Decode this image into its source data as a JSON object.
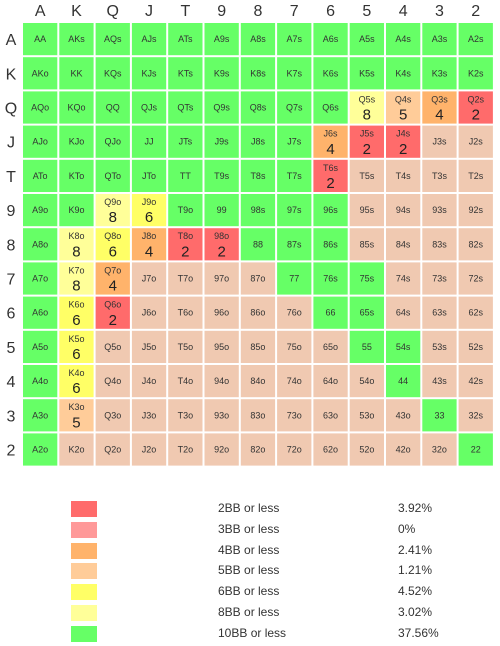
{
  "chart_data": {
    "type": "heatmap",
    "title": "",
    "columns": [
      "A",
      "K",
      "Q",
      "J",
      "T",
      "9",
      "8",
      "7",
      "6",
      "5",
      "4",
      "3",
      "2"
    ],
    "rows": [
      "A",
      "K",
      "Q",
      "J",
      "T",
      "9",
      "8",
      "7",
      "6",
      "5",
      "4",
      "3",
      "2"
    ],
    "colors": {
      "green": "#66ff66",
      "peach": "#f0c9b1",
      "red2": "#ff6b6b",
      "red3": "#ff9999",
      "orange4": "#ffb36b",
      "apricot5": "#ffcc99",
      "yellow6": "#ffff66",
      "yellow8": "#ffff99"
    },
    "cells": [
      [
        {
          "l": "AA",
          "c": "green"
        },
        {
          "l": "AKs",
          "c": "green"
        },
        {
          "l": "AQs",
          "c": "green"
        },
        {
          "l": "AJs",
          "c": "green"
        },
        {
          "l": "ATs",
          "c": "green"
        },
        {
          "l": "A9s",
          "c": "green"
        },
        {
          "l": "A8s",
          "c": "green"
        },
        {
          "l": "A7s",
          "c": "green"
        },
        {
          "l": "A6s",
          "c": "green"
        },
        {
          "l": "A5s",
          "c": "green"
        },
        {
          "l": "A4s",
          "c": "green"
        },
        {
          "l": "A3s",
          "c": "green"
        },
        {
          "l": "A2s",
          "c": "green"
        }
      ],
      [
        {
          "l": "AKo",
          "c": "green"
        },
        {
          "l": "KK",
          "c": "green"
        },
        {
          "l": "KQs",
          "c": "green"
        },
        {
          "l": "KJs",
          "c": "green"
        },
        {
          "l": "KTs",
          "c": "green"
        },
        {
          "l": "K9s",
          "c": "green"
        },
        {
          "l": "K8s",
          "c": "green"
        },
        {
          "l": "K7s",
          "c": "green"
        },
        {
          "l": "K6s",
          "c": "green"
        },
        {
          "l": "K5s",
          "c": "green"
        },
        {
          "l": "K4s",
          "c": "green"
        },
        {
          "l": "K3s",
          "c": "green"
        },
        {
          "l": "K2s",
          "c": "green"
        }
      ],
      [
        {
          "l": "AQo",
          "c": "green"
        },
        {
          "l": "KQo",
          "c": "green"
        },
        {
          "l": "QQ",
          "c": "green"
        },
        {
          "l": "QJs",
          "c": "green"
        },
        {
          "l": "QTs",
          "c": "green"
        },
        {
          "l": "Q9s",
          "c": "green"
        },
        {
          "l": "Q8s",
          "c": "green"
        },
        {
          "l": "Q7s",
          "c": "green"
        },
        {
          "l": "Q6s",
          "c": "green"
        },
        {
          "l": "Q5s",
          "c": "yellow8",
          "n": "8"
        },
        {
          "l": "Q4s",
          "c": "apricot5",
          "n": "5"
        },
        {
          "l": "Q3s",
          "c": "orange4",
          "n": "4"
        },
        {
          "l": "Q2s",
          "c": "red2",
          "n": "2"
        }
      ],
      [
        {
          "l": "AJo",
          "c": "green"
        },
        {
          "l": "KJo",
          "c": "green"
        },
        {
          "l": "QJo",
          "c": "green"
        },
        {
          "l": "JJ",
          "c": "green"
        },
        {
          "l": "JTs",
          "c": "green"
        },
        {
          "l": "J9s",
          "c": "green"
        },
        {
          "l": "J8s",
          "c": "green"
        },
        {
          "l": "J7s",
          "c": "green"
        },
        {
          "l": "J6s",
          "c": "orange4",
          "n": "4"
        },
        {
          "l": "J5s",
          "c": "red2",
          "n": "2"
        },
        {
          "l": "J4s",
          "c": "red2",
          "n": "2"
        },
        {
          "l": "J3s",
          "c": "peach"
        },
        {
          "l": "J2s",
          "c": "peach"
        }
      ],
      [
        {
          "l": "ATo",
          "c": "green"
        },
        {
          "l": "KTo",
          "c": "green"
        },
        {
          "l": "QTo",
          "c": "green"
        },
        {
          "l": "JTo",
          "c": "green"
        },
        {
          "l": "TT",
          "c": "green"
        },
        {
          "l": "T9s",
          "c": "green"
        },
        {
          "l": "T8s",
          "c": "green"
        },
        {
          "l": "T7s",
          "c": "green"
        },
        {
          "l": "T6s",
          "c": "red2",
          "n": "2"
        },
        {
          "l": "T5s",
          "c": "peach"
        },
        {
          "l": "T4s",
          "c": "peach"
        },
        {
          "l": "T3s",
          "c": "peach"
        },
        {
          "l": "T2s",
          "c": "peach"
        }
      ],
      [
        {
          "l": "A9o",
          "c": "green"
        },
        {
          "l": "K9o",
          "c": "green"
        },
        {
          "l": "Q9o",
          "c": "yellow8",
          "n": "8"
        },
        {
          "l": "J9o",
          "c": "yellow6",
          "n": "6"
        },
        {
          "l": "T9o",
          "c": "green"
        },
        {
          "l": "99",
          "c": "green"
        },
        {
          "l": "98s",
          "c": "green"
        },
        {
          "l": "97s",
          "c": "green"
        },
        {
          "l": "96s",
          "c": "green"
        },
        {
          "l": "95s",
          "c": "peach"
        },
        {
          "l": "94s",
          "c": "peach"
        },
        {
          "l": "93s",
          "c": "peach"
        },
        {
          "l": "92s",
          "c": "peach"
        }
      ],
      [
        {
          "l": "A8o",
          "c": "green"
        },
        {
          "l": "K8o",
          "c": "yellow8",
          "n": "8"
        },
        {
          "l": "Q8o",
          "c": "yellow6",
          "n": "6"
        },
        {
          "l": "J8o",
          "c": "orange4",
          "n": "4"
        },
        {
          "l": "T8o",
          "c": "red2",
          "n": "2"
        },
        {
          "l": "98o",
          "c": "red2",
          "n": "2"
        },
        {
          "l": "88",
          "c": "green"
        },
        {
          "l": "87s",
          "c": "green"
        },
        {
          "l": "86s",
          "c": "green"
        },
        {
          "l": "85s",
          "c": "peach"
        },
        {
          "l": "84s",
          "c": "peach"
        },
        {
          "l": "83s",
          "c": "peach"
        },
        {
          "l": "82s",
          "c": "peach"
        }
      ],
      [
        {
          "l": "A7o",
          "c": "green"
        },
        {
          "l": "K7o",
          "c": "yellow8",
          "n": "8"
        },
        {
          "l": "Q7o",
          "c": "orange4",
          "n": "4"
        },
        {
          "l": "J7o",
          "c": "peach"
        },
        {
          "l": "T7o",
          "c": "peach"
        },
        {
          "l": "97o",
          "c": "peach"
        },
        {
          "l": "87o",
          "c": "peach"
        },
        {
          "l": "77",
          "c": "green"
        },
        {
          "l": "76s",
          "c": "green"
        },
        {
          "l": "75s",
          "c": "green"
        },
        {
          "l": "74s",
          "c": "peach"
        },
        {
          "l": "73s",
          "c": "peach"
        },
        {
          "l": "72s",
          "c": "peach"
        }
      ],
      [
        {
          "l": "A6o",
          "c": "green"
        },
        {
          "l": "K6o",
          "c": "yellow6",
          "n": "6"
        },
        {
          "l": "Q6o",
          "c": "red2",
          "n": "2"
        },
        {
          "l": "J6o",
          "c": "peach"
        },
        {
          "l": "T6o",
          "c": "peach"
        },
        {
          "l": "96o",
          "c": "peach"
        },
        {
          "l": "86o",
          "c": "peach"
        },
        {
          "l": "76o",
          "c": "peach"
        },
        {
          "l": "66",
          "c": "green"
        },
        {
          "l": "65s",
          "c": "green"
        },
        {
          "l": "64s",
          "c": "peach"
        },
        {
          "l": "63s",
          "c": "peach"
        },
        {
          "l": "62s",
          "c": "peach"
        }
      ],
      [
        {
          "l": "A5o",
          "c": "green"
        },
        {
          "l": "K5o",
          "c": "yellow6",
          "n": "6"
        },
        {
          "l": "Q5o",
          "c": "peach"
        },
        {
          "l": "J5o",
          "c": "peach"
        },
        {
          "l": "T5o",
          "c": "peach"
        },
        {
          "l": "95o",
          "c": "peach"
        },
        {
          "l": "85o",
          "c": "peach"
        },
        {
          "l": "75o",
          "c": "peach"
        },
        {
          "l": "65o",
          "c": "peach"
        },
        {
          "l": "55",
          "c": "green"
        },
        {
          "l": "54s",
          "c": "green"
        },
        {
          "l": "53s",
          "c": "peach"
        },
        {
          "l": "52s",
          "c": "peach"
        }
      ],
      [
        {
          "l": "A4o",
          "c": "green"
        },
        {
          "l": "K4o",
          "c": "yellow6",
          "n": "6"
        },
        {
          "l": "Q4o",
          "c": "peach"
        },
        {
          "l": "J4o",
          "c": "peach"
        },
        {
          "l": "T4o",
          "c": "peach"
        },
        {
          "l": "94o",
          "c": "peach"
        },
        {
          "l": "84o",
          "c": "peach"
        },
        {
          "l": "74o",
          "c": "peach"
        },
        {
          "l": "64o",
          "c": "peach"
        },
        {
          "l": "54o",
          "c": "peach"
        },
        {
          "l": "44",
          "c": "green"
        },
        {
          "l": "43s",
          "c": "peach"
        },
        {
          "l": "42s",
          "c": "peach"
        }
      ],
      [
        {
          "l": "A3o",
          "c": "green"
        },
        {
          "l": "K3o",
          "c": "apricot5",
          "n": "5"
        },
        {
          "l": "Q3o",
          "c": "peach"
        },
        {
          "l": "J3o",
          "c": "peach"
        },
        {
          "l": "T3o",
          "c": "peach"
        },
        {
          "l": "93o",
          "c": "peach"
        },
        {
          "l": "83o",
          "c": "peach"
        },
        {
          "l": "73o",
          "c": "peach"
        },
        {
          "l": "63o",
          "c": "peach"
        },
        {
          "l": "53o",
          "c": "peach"
        },
        {
          "l": "43o",
          "c": "peach"
        },
        {
          "l": "33",
          "c": "green"
        },
        {
          "l": "32s",
          "c": "peach"
        }
      ],
      [
        {
          "l": "A2o",
          "c": "green"
        },
        {
          "l": "K2o",
          "c": "peach"
        },
        {
          "l": "Q2o",
          "c": "peach"
        },
        {
          "l": "J2o",
          "c": "peach"
        },
        {
          "l": "T2o",
          "c": "peach"
        },
        {
          "l": "92o",
          "c": "peach"
        },
        {
          "l": "82o",
          "c": "peach"
        },
        {
          "l": "72o",
          "c": "peach"
        },
        {
          "l": "62o",
          "c": "peach"
        },
        {
          "l": "52o",
          "c": "peach"
        },
        {
          "l": "42o",
          "c": "peach"
        },
        {
          "l": "32o",
          "c": "peach"
        },
        {
          "l": "22",
          "c": "green"
        }
      ]
    ],
    "legend": [
      {
        "label": "2BB or less",
        "percent": "3.92%",
        "color": "#ff6b6b"
      },
      {
        "label": "3BB or less",
        "percent": "0%",
        "color": "#ff9999"
      },
      {
        "label": "4BB or less",
        "percent": "2.41%",
        "color": "#ffb36b"
      },
      {
        "label": "5BB or less",
        "percent": "1.21%",
        "color": "#ffcc99"
      },
      {
        "label": "6BB or less",
        "percent": "4.52%",
        "color": "#ffff66"
      },
      {
        "label": "8BB or less",
        "percent": "3.02%",
        "color": "#ffff99"
      },
      {
        "label": "10BB or less",
        "percent": "37.56%",
        "color": "#66ff66"
      }
    ]
  }
}
